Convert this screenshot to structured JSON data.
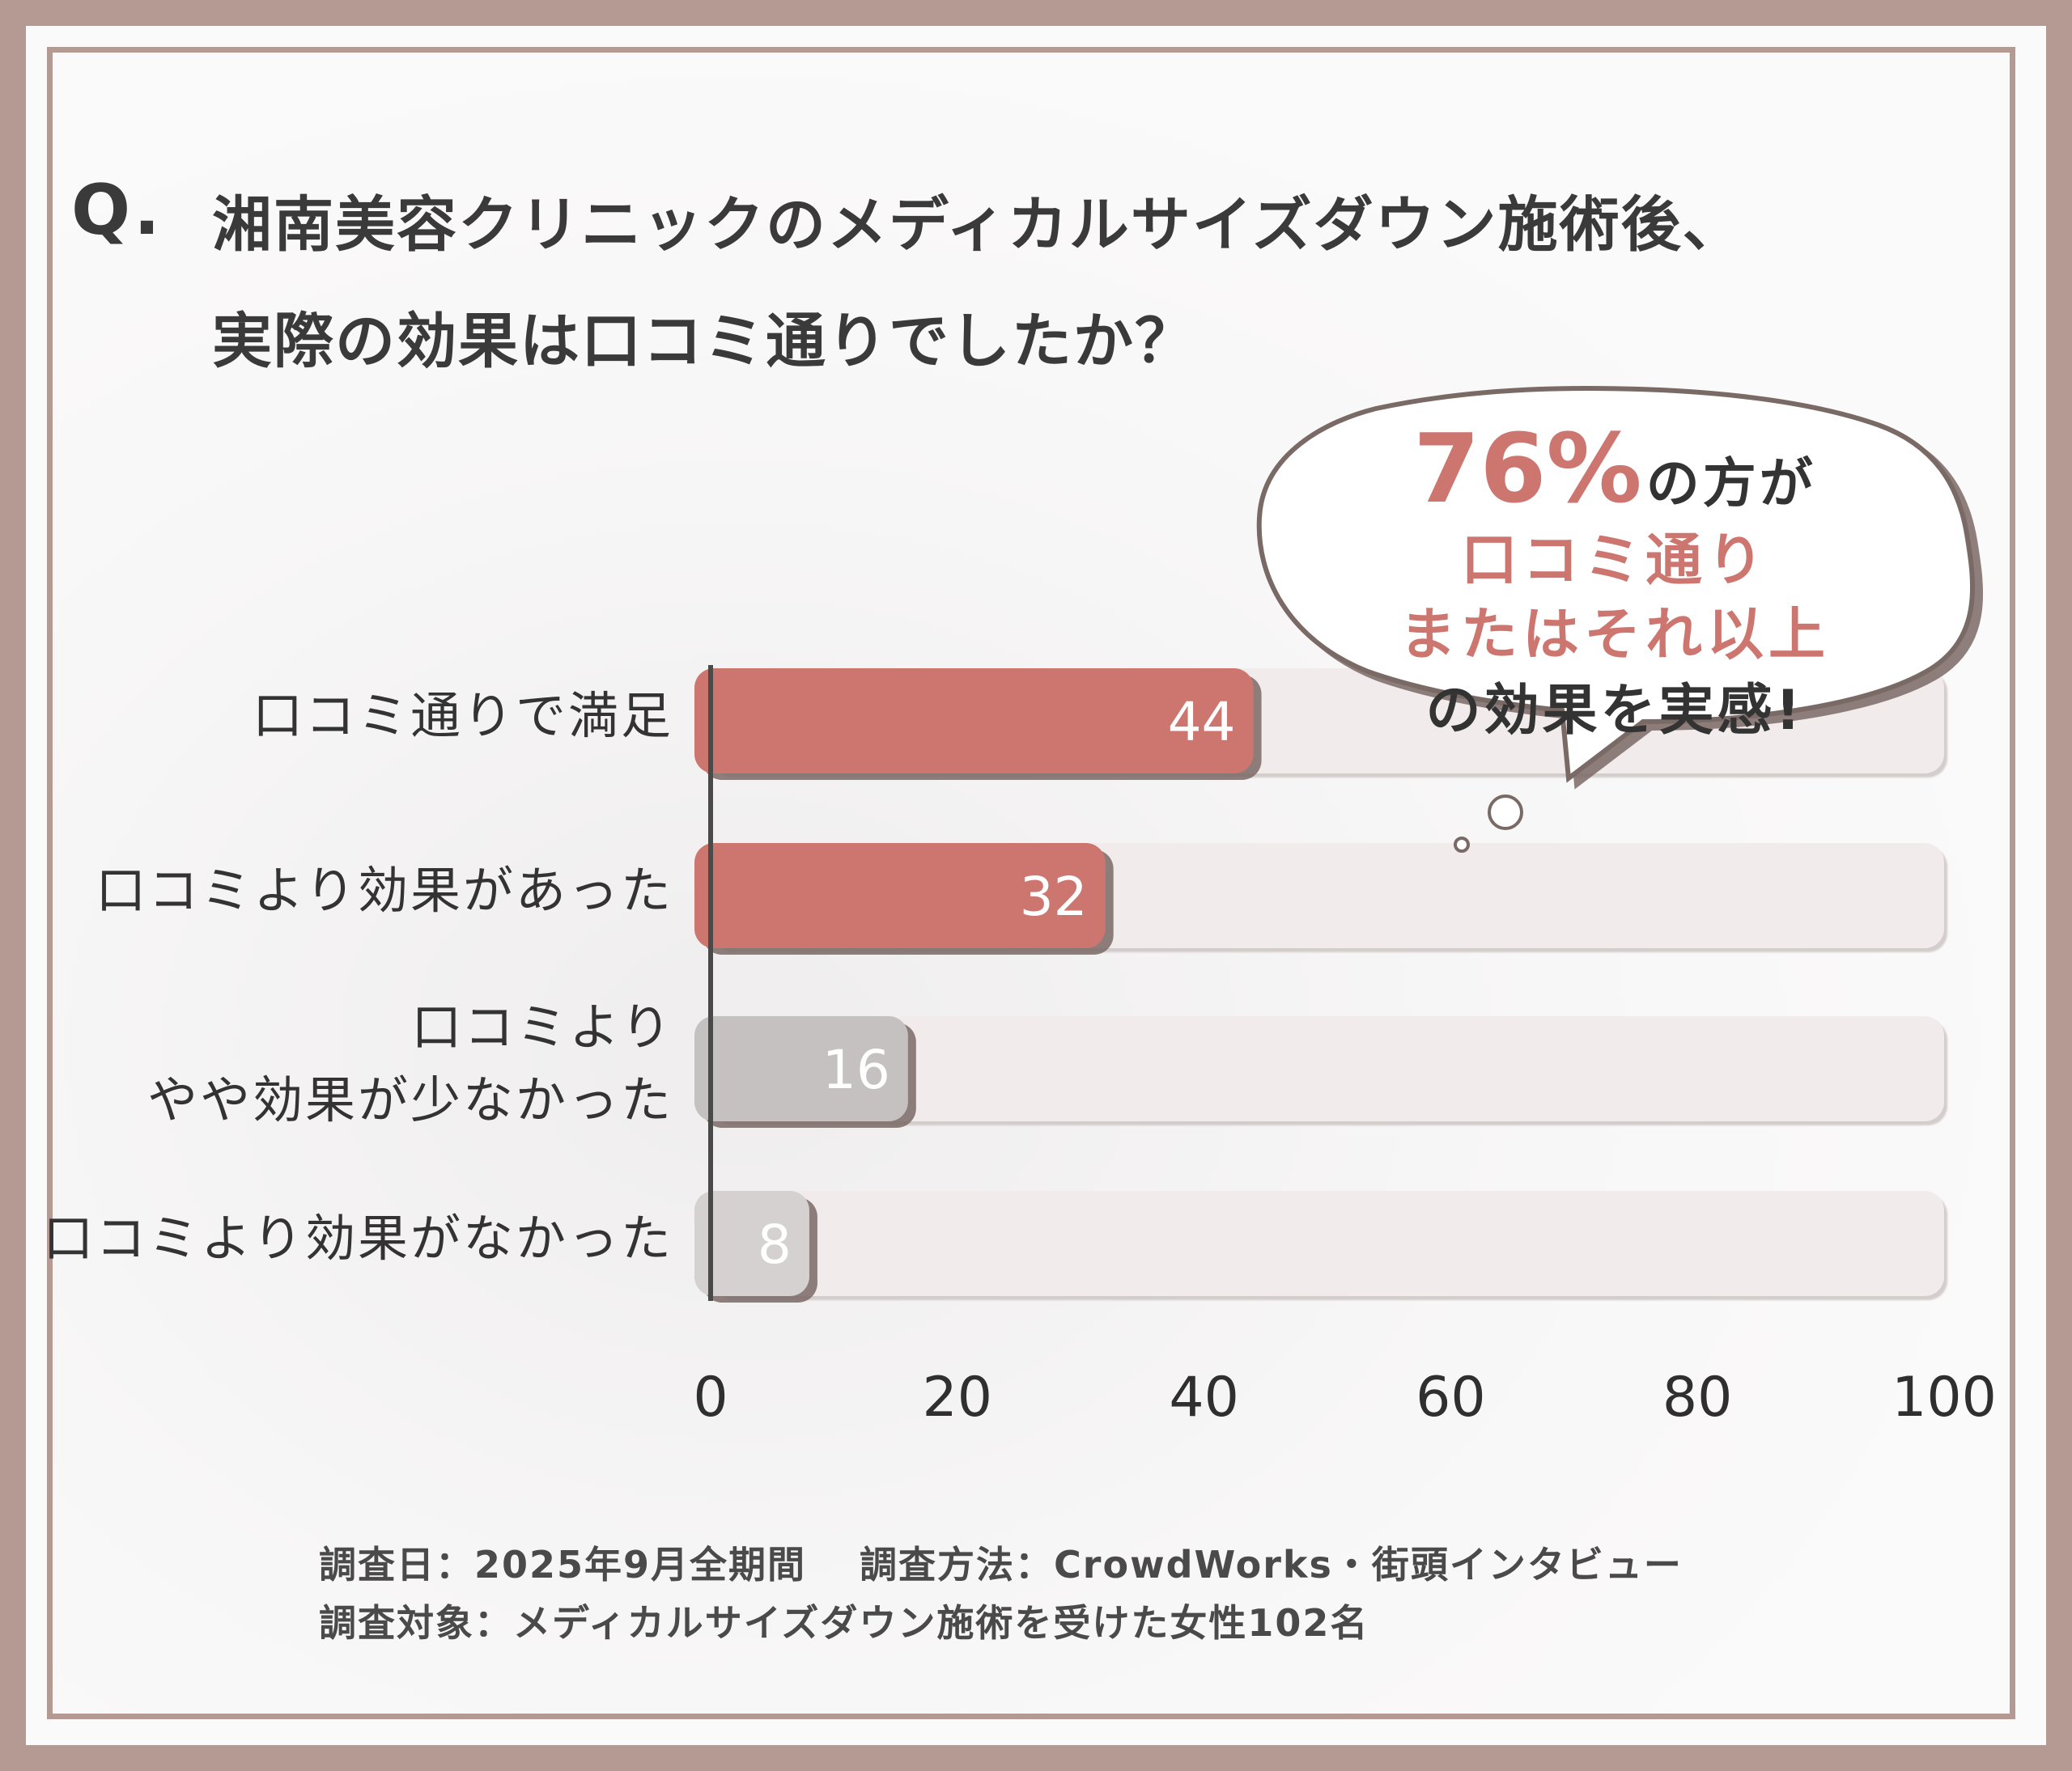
{
  "title": {
    "q_label": "Q.",
    "line1": "湘南美容クリニックのメディカルサイズダウン施術後、",
    "line2": "実際の効果は口コミ通りでしたか？"
  },
  "callout": {
    "percent": "76%",
    "suffix": "の方が",
    "line2": "口コミ通り",
    "line3": "またはそれ以上",
    "line4": "の効果を実感!"
  },
  "chart_data": {
    "type": "bar",
    "orientation": "horizontal",
    "categories": [
      "口コミ通りで満足",
      "口コミより効果があった",
      "口コミより\nやや効果が少なかった",
      "口コミより効果がなかった"
    ],
    "values": [
      44,
      32,
      16,
      8
    ],
    "xlim": [
      0,
      100
    ],
    "xticks": [
      "0",
      "20",
      "40",
      "60",
      "80",
      "100"
    ],
    "bar_colors": [
      "#cd7670",
      "#cd7670",
      "#c4c1c0",
      "#d4d1d0"
    ],
    "track_color": "#f1eceb",
    "grid": false
  },
  "footer": {
    "line1": "調査日：2025年9月全期間　 調査方法：CrowdWorks・街頭インタビュー",
    "line2": "調査対象：メディカルサイズダウン施術を受けた女性102名"
  }
}
